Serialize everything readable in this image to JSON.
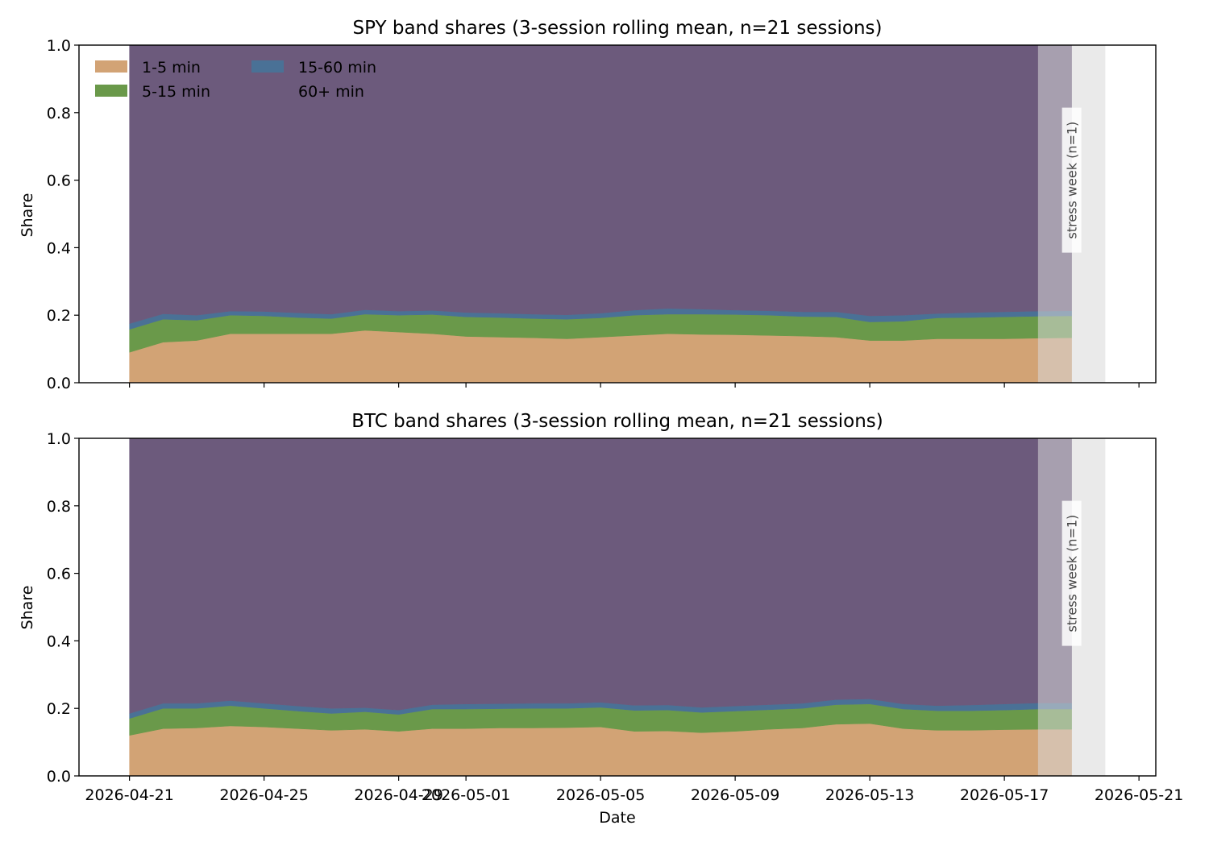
{
  "chart_data": [
    {
      "type": "area",
      "stacked": true,
      "title": "SPY band shares (3-session rolling mean, n=21 sessions)",
      "xlabel": "",
      "ylabel": "Share",
      "ylim": [
        0,
        1
      ],
      "xlim": [
        "2026-04-19.5",
        "2026-05-21.5"
      ],
      "yticks": [
        "0.0",
        "0.2",
        "0.4",
        "0.6",
        "0.8",
        "1.0"
      ],
      "xticks": [
        "2026-04-21",
        "2026-04-25",
        "2026-04-29",
        "2026-05-01",
        "2026-05-05",
        "2026-05-09",
        "2026-05-13",
        "2026-05-17",
        "2026-05-21"
      ],
      "show_xtick_labels": false,
      "grid": false,
      "legend": {
        "placement": "top-left",
        "columns": 2
      },
      "x": [
        "2026-04-21",
        "2026-04-22",
        "2026-04-23",
        "2026-04-24",
        "2026-04-25",
        "2026-04-26",
        "2026-04-27",
        "2026-04-28",
        "2026-04-29",
        "2026-04-30",
        "2026-05-01",
        "2026-05-02",
        "2026-05-03",
        "2026-05-04",
        "2026-05-05",
        "2026-05-06",
        "2026-05-07",
        "2026-05-08",
        "2026-05-09",
        "2026-05-10",
        "2026-05-11",
        "2026-05-12",
        "2026-05-13",
        "2026-05-14",
        "2026-05-15",
        "2026-05-16",
        "2026-05-17",
        "2026-05-18",
        "2026-05-19"
      ],
      "series": [
        {
          "name": "1-5 min",
          "color": "#d2a375",
          "values": [
            0.09,
            0.12,
            0.125,
            0.145,
            0.145,
            0.145,
            0.145,
            0.155,
            0.15,
            0.145,
            0.137,
            0.135,
            0.133,
            0.13,
            0.135,
            0.14,
            0.145,
            0.143,
            0.142,
            0.14,
            0.138,
            0.135,
            0.125,
            0.125,
            0.13,
            0.13,
            0.13,
            0.132,
            0.133
          ]
        },
        {
          "name": "5-15 min",
          "color": "#6a994a",
          "values": [
            0.068,
            0.068,
            0.06,
            0.055,
            0.053,
            0.048,
            0.045,
            0.048,
            0.05,
            0.057,
            0.058,
            0.058,
            0.057,
            0.058,
            0.057,
            0.06,
            0.058,
            0.06,
            0.06,
            0.06,
            0.058,
            0.06,
            0.055,
            0.057,
            0.062,
            0.063,
            0.065,
            0.065,
            0.065
          ]
        },
        {
          "name": "15-60 min",
          "color": "#4a7196",
          "values": [
            0.017,
            0.016,
            0.015,
            0.012,
            0.013,
            0.014,
            0.013,
            0.013,
            0.012,
            0.012,
            0.013,
            0.013,
            0.013,
            0.013,
            0.014,
            0.015,
            0.017,
            0.015,
            0.013,
            0.013,
            0.014,
            0.015,
            0.018,
            0.018,
            0.013,
            0.015,
            0.015,
            0.015,
            0.015
          ]
        },
        {
          "name": "60+ min",
          "color": "#6c5a7c",
          "values": [
            0.825,
            0.796,
            0.8,
            0.788,
            0.789,
            0.793,
            0.797,
            0.784,
            0.788,
            0.786,
            0.792,
            0.794,
            0.797,
            0.799,
            0.794,
            0.785,
            0.78,
            0.782,
            0.785,
            0.787,
            0.79,
            0.79,
            0.802,
            0.8,
            0.795,
            0.792,
            0.79,
            0.788,
            0.787
          ]
        }
      ],
      "shaded_spans": [
        {
          "start": "2026-05-18",
          "end": "2026-05-20",
          "color": "#d9d9d9"
        }
      ],
      "annotations": [
        "stress week (n=1)"
      ]
    },
    {
      "type": "area",
      "stacked": true,
      "title": "BTC band shares (3-session rolling mean, n=21 sessions)",
      "xlabel": "Date",
      "ylabel": "Share",
      "ylim": [
        0,
        1
      ],
      "xlim": [
        "2026-04-19.5",
        "2026-05-21.5"
      ],
      "yticks": [
        "0.0",
        "0.2",
        "0.4",
        "0.6",
        "0.8",
        "1.0"
      ],
      "xticks": [
        "2026-04-21",
        "2026-04-25",
        "2026-04-29",
        "2026-05-01",
        "2026-05-05",
        "2026-05-09",
        "2026-05-13",
        "2026-05-17",
        "2026-05-21"
      ],
      "show_xtick_labels": true,
      "grid": false,
      "x": [
        "2026-04-21",
        "2026-04-22",
        "2026-04-23",
        "2026-04-24",
        "2026-04-25",
        "2026-04-26",
        "2026-04-27",
        "2026-04-28",
        "2026-04-29",
        "2026-04-30",
        "2026-05-01",
        "2026-05-02",
        "2026-05-03",
        "2026-05-04",
        "2026-05-05",
        "2026-05-06",
        "2026-05-07",
        "2026-05-08",
        "2026-05-09",
        "2026-05-10",
        "2026-05-11",
        "2026-05-12",
        "2026-05-13",
        "2026-05-14",
        "2026-05-15",
        "2026-05-16",
        "2026-05-17",
        "2026-05-18",
        "2026-05-19"
      ],
      "series": [
        {
          "name": "1-5 min",
          "color": "#d2a375",
          "values": [
            0.12,
            0.14,
            0.142,
            0.148,
            0.145,
            0.14,
            0.135,
            0.138,
            0.132,
            0.14,
            0.14,
            0.142,
            0.142,
            0.143,
            0.145,
            0.132,
            0.133,
            0.128,
            0.132,
            0.138,
            0.142,
            0.153,
            0.155,
            0.14,
            0.135,
            0.135,
            0.137,
            0.138,
            0.138
          ]
        },
        {
          "name": "5-15 min",
          "color": "#6a994a",
          "values": [
            0.05,
            0.06,
            0.058,
            0.06,
            0.055,
            0.052,
            0.05,
            0.052,
            0.05,
            0.058,
            0.058,
            0.057,
            0.058,
            0.057,
            0.058,
            0.062,
            0.062,
            0.06,
            0.06,
            0.058,
            0.058,
            0.058,
            0.058,
            0.058,
            0.058,
            0.058,
            0.058,
            0.06,
            0.06
          ]
        },
        {
          "name": "15-60 min",
          "color": "#4a7196",
          "values": [
            0.015,
            0.015,
            0.015,
            0.015,
            0.015,
            0.015,
            0.015,
            0.012,
            0.013,
            0.013,
            0.015,
            0.015,
            0.015,
            0.015,
            0.015,
            0.015,
            0.015,
            0.015,
            0.015,
            0.015,
            0.015,
            0.015,
            0.015,
            0.015,
            0.015,
            0.017,
            0.018,
            0.018,
            0.018
          ]
        },
        {
          "name": "60+ min",
          "color": "#6c5a7c",
          "values": [
            0.815,
            0.785,
            0.785,
            0.777,
            0.785,
            0.793,
            0.8,
            0.798,
            0.805,
            0.789,
            0.787,
            0.786,
            0.785,
            0.785,
            0.782,
            0.791,
            0.79,
            0.797,
            0.793,
            0.789,
            0.785,
            0.774,
            0.772,
            0.787,
            0.792,
            0.79,
            0.787,
            0.784,
            0.784
          ]
        }
      ],
      "shaded_spans": [
        {
          "start": "2026-05-18",
          "end": "2026-05-20",
          "color": "#d9d9d9"
        }
      ],
      "annotations": [
        "stress week (n=1)"
      ]
    }
  ]
}
